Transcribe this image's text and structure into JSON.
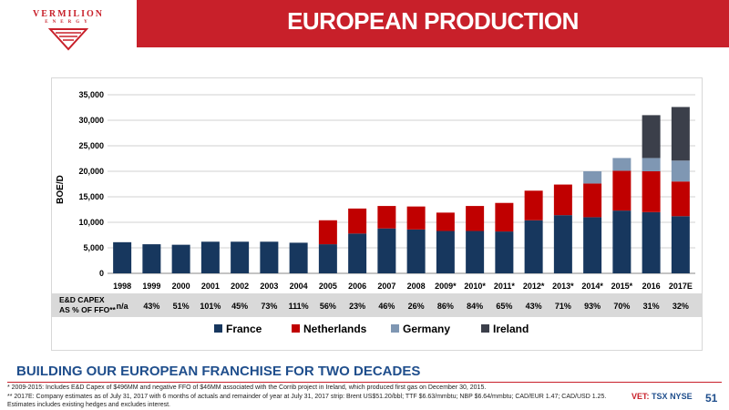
{
  "logo": {
    "name": "VERMILION",
    "sub": "ENERGY"
  },
  "header": {
    "title": "EUROPEAN PRODUCTION"
  },
  "chart_data": {
    "type": "bar",
    "stacked": true,
    "ylabel": "BOE/D",
    "ylim": [
      0,
      35000
    ],
    "yticks": [
      "0",
      "5,000",
      "10,000",
      "15,000",
      "20,000",
      "25,000",
      "30,000",
      "35,000"
    ],
    "grid": true,
    "legend_position": "bottom",
    "categories": [
      "1998",
      "1999",
      "2000",
      "2001",
      "2002",
      "2003",
      "2004",
      "2005",
      "2006",
      "2007",
      "2008",
      "2009*",
      "2010*",
      "2011*",
      "2012*",
      "2013*",
      "2014*",
      "2015*",
      "2016",
      "2017E"
    ],
    "series": [
      {
        "name": "France",
        "color": "#17375e",
        "values": [
          6100,
          5700,
          5600,
          6200,
          6200,
          6200,
          6000,
          5700,
          7800,
          8800,
          8600,
          8300,
          8300,
          8200,
          10400,
          11400,
          11000,
          12300,
          12000,
          11200
        ]
      },
      {
        "name": "Netherlands",
        "color": "#c00000",
        "values": [
          0,
          0,
          0,
          0,
          0,
          0,
          0,
          4700,
          4900,
          4400,
          4500,
          3600,
          4900,
          5600,
          5800,
          6000,
          6600,
          7800,
          8000,
          6800
        ]
      },
      {
        "name": "Germany",
        "color": "#7f97b3",
        "values": [
          0,
          0,
          0,
          0,
          0,
          0,
          0,
          0,
          0,
          0,
          0,
          0,
          0,
          0,
          0,
          0,
          2400,
          2500,
          2600,
          4100
        ]
      },
      {
        "name": "Ireland",
        "color": "#3b3f4a",
        "values": [
          0,
          0,
          0,
          0,
          0,
          0,
          0,
          0,
          0,
          0,
          0,
          0,
          0,
          0,
          0,
          0,
          0,
          0,
          8400,
          10500
        ]
      }
    ],
    "capex_row": {
      "label_line1": "E&D CAPEX",
      "label_line2": "AS % OF FFO**",
      "values": [
        "n/a",
        "43%",
        "51%",
        "101%",
        "45%",
        "73%",
        "111%",
        "56%",
        "23%",
        "46%",
        "26%",
        "86%",
        "84%",
        "65%",
        "43%",
        "71%",
        "93%",
        "70%",
        "31%",
        "32%"
      ]
    }
  },
  "subtitle": "BUILDING OUR EUROPEAN FRANCHISE FOR TWO DECADES",
  "footnotes": [
    "* 2009-2015: Includes E&D Capex of $496MM and negative FFO of $46MM associated with the Corrib project in Ireland, which produced first gas on December 30, 2015.",
    "** 2017E: Company estimates as of July 31, 2017 with 6 months of actuals and remainder of year at July 31, 2017 strip: Brent US$51.20/bbl; TTF $6.63/mmbtu; NBP $6.64/mmbtu; CAD/EUR 1.47; CAD/USD 1.25. Estimates includes existing hedges and excludes interest."
  ],
  "footer": {
    "exchange_prefix": "VET:",
    "exchange_tsx": "TSX",
    "exchange_nyse": "NYSE",
    "page_number": "51"
  }
}
